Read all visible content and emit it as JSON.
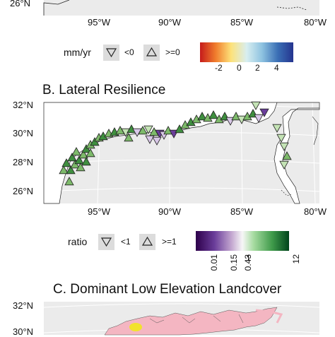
{
  "panelA": {
    "y_labels": [
      "26°N"
    ],
    "x_labels": [
      "95°W",
      "90°W",
      "85°W",
      "80°W"
    ],
    "legend": {
      "title": "mm/yr",
      "shape_keys": [
        {
          "symbol": "down-triangle",
          "label": "<0"
        },
        {
          "symbol": "up-triangle",
          "label": ">=0"
        }
      ],
      "colorbar": {
        "ticks": [
          "-2",
          "0",
          "2",
          "4"
        ],
        "colors": [
          "#d7191c",
          "#fdae61",
          "#ffffbf",
          "#abd9e9",
          "#2c7bb6",
          "#313695"
        ]
      }
    }
  },
  "panelB": {
    "title": "B. Lateral Resilience",
    "y_labels": [
      "32°N",
      "30°N",
      "28°N",
      "26°N"
    ],
    "x_labels": [
      "95°W",
      "90°W",
      "85°W",
      "80°W"
    ],
    "legend": {
      "title": "ratio",
      "shape_keys": [
        {
          "symbol": "down-triangle",
          "label": "<1"
        },
        {
          "symbol": "up-triangle",
          "label": ">=1"
        }
      ],
      "colorbar": {
        "ticks": [
          "0.01",
          "0.15",
          "0.43",
          "1",
          "12"
        ],
        "colors": [
          "#2d004b",
          "#8c6bb1",
          "#f7f7f7",
          "#a6dba0",
          "#1b7837",
          "#00441b"
        ]
      }
    }
  },
  "panelC": {
    "title": "C. Dominant Low Elevation Landcover",
    "y_labels": [
      "32°N",
      "30°N"
    ]
  },
  "colors": {
    "panel_bg": "#ebebeb",
    "land": "#ffffff",
    "green_dark": "#3f8f3f",
    "green_mid": "#7dba6a",
    "green_light": "#c4e3b5",
    "purple_dark": "#6a3d9a",
    "purple_light": "#d9c8e8",
    "pink_land": "#f4b6c2",
    "yellow": "#f2e22c"
  }
}
